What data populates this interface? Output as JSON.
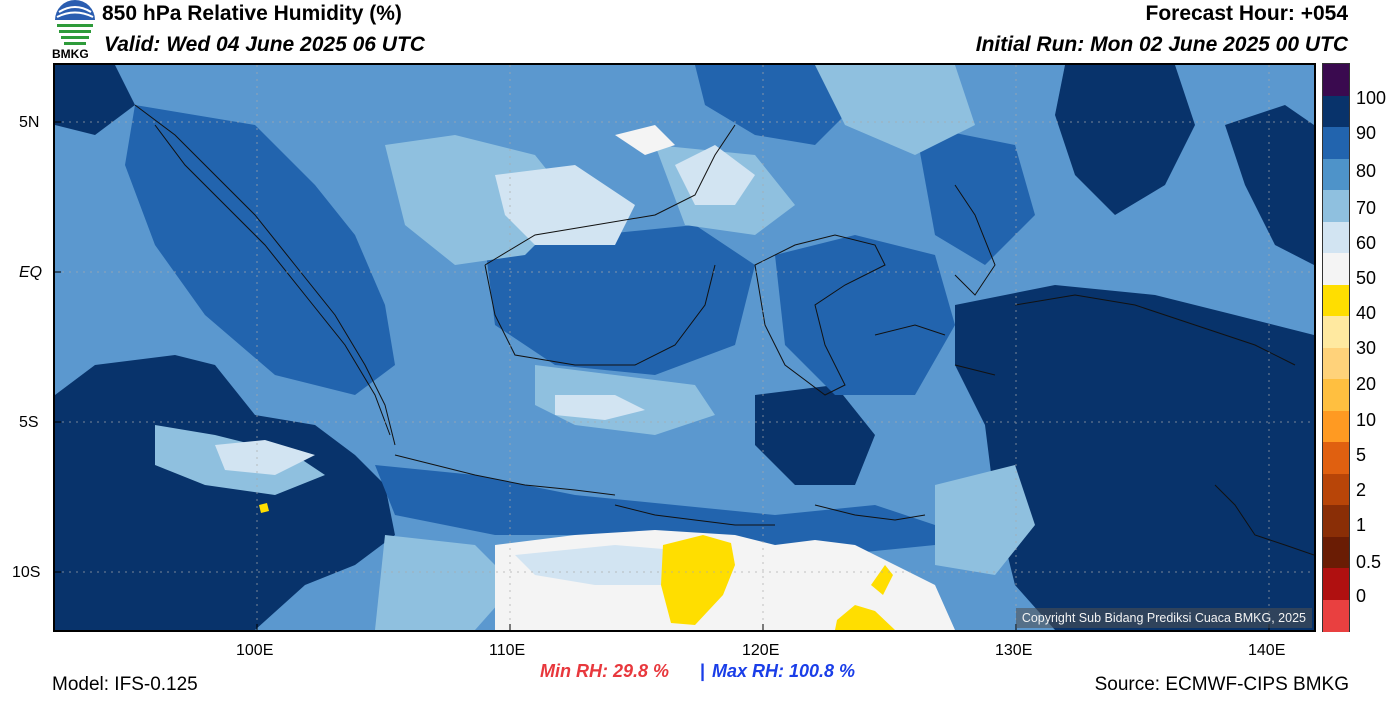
{
  "header": {
    "title": "850 hPa Relative Humidity (%)",
    "valid": "Valid: Wed 04 June 2025 06 UTC",
    "forecast_hour": "Forecast Hour: +054",
    "initial_run": "Initial Run: Mon 02 June 2025 00 UTC",
    "logo_text": "BMKG"
  },
  "map": {
    "lat_labels": [
      "5N",
      "EQ",
      "5S",
      "10S"
    ],
    "lon_labels": [
      "100E",
      "110E",
      "120E",
      "130E",
      "140E"
    ],
    "copyright": "Copyright Sub Bidang Prediksi Cuaca BMKG, 2025",
    "ocean_color": "#5b98cf",
    "colors": {
      "rh_90_100": "#08336b",
      "rh_80_90": "#2264ae",
      "rh_70_80": "#4e93c9",
      "rh_60_70": "#8fc0df",
      "rh_50_60": "#d2e4f2",
      "rh_40_50": "#f4f4f4",
      "rh_30_40": "#ffde00"
    }
  },
  "colorbar": {
    "labels": [
      "100",
      "90",
      "80",
      "70",
      "60",
      "50",
      "40",
      "30",
      "20",
      "10",
      "5",
      "2",
      "1",
      "0.5",
      "0"
    ],
    "colors": [
      "#3a0a4f",
      "#08336b",
      "#2264ae",
      "#4e93c9",
      "#8fc0df",
      "#d2e4f2",
      "#f4f4f4",
      "#ffde00",
      "#ffe9a0",
      "#ffd27a",
      "#ffbf40",
      "#ff9a22",
      "#e06010",
      "#b84508",
      "#8a2e06",
      "#6a1c04",
      "#b01010",
      "#e94040"
    ]
  },
  "footer": {
    "model": "Model: IFS-0.125",
    "min_rh": "Min RH:  29.8 %",
    "separator": "|",
    "max_rh": "Max RH: 100.8 %",
    "source": "Source: ECMWF-CIPS BMKG",
    "min_color": "#e8383d",
    "max_color": "#1a3ee8"
  }
}
